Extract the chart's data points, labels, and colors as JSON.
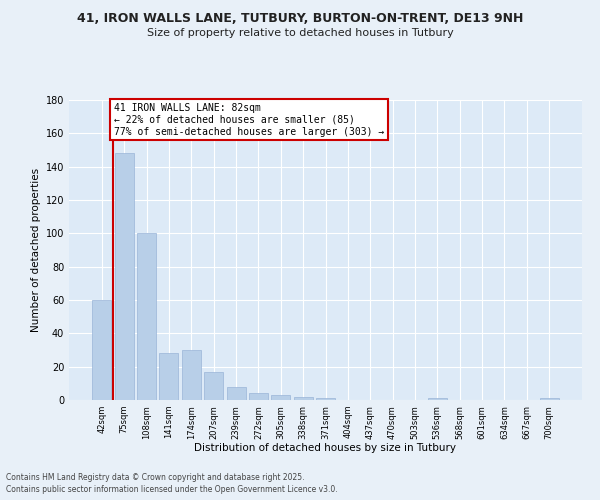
{
  "title_line1": "41, IRON WALLS LANE, TUTBURY, BURTON-ON-TRENT, DE13 9NH",
  "title_line2": "Size of property relative to detached houses in Tutbury",
  "xlabel": "Distribution of detached houses by size in Tutbury",
  "ylabel": "Number of detached properties",
  "categories": [
    "42sqm",
    "75sqm",
    "108sqm",
    "141sqm",
    "174sqm",
    "207sqm",
    "239sqm",
    "272sqm",
    "305sqm",
    "338sqm",
    "371sqm",
    "404sqm",
    "437sqm",
    "470sqm",
    "503sqm",
    "536sqm",
    "568sqm",
    "601sqm",
    "634sqm",
    "667sqm",
    "700sqm"
  ],
  "values": [
    60,
    148,
    100,
    28,
    30,
    17,
    8,
    4,
    3,
    2,
    1,
    0,
    0,
    0,
    0,
    1,
    0,
    0,
    0,
    0,
    1
  ],
  "bar_color": "#b8cfe8",
  "bar_edge_color": "#9ab5d8",
  "vline_x": 0.5,
  "vline_color": "#cc0000",
  "annotation_line1": "41 IRON WALLS LANE: 82sqm",
  "annotation_line2": "← 22% of detached houses are smaller (85)",
  "annotation_line3": "77% of semi-detached houses are larger (303) →",
  "annotation_box_edge_color": "#cc0000",
  "ylim": [
    0,
    180
  ],
  "yticks": [
    0,
    20,
    40,
    60,
    80,
    100,
    120,
    140,
    160,
    180
  ],
  "footnote_line1": "Contains HM Land Registry data © Crown copyright and database right 2025.",
  "footnote_line2": "Contains public sector information licensed under the Open Government Licence v3.0.",
  "bg_color": "#e8f0f8",
  "plot_bg_color": "#ddeaf7"
}
